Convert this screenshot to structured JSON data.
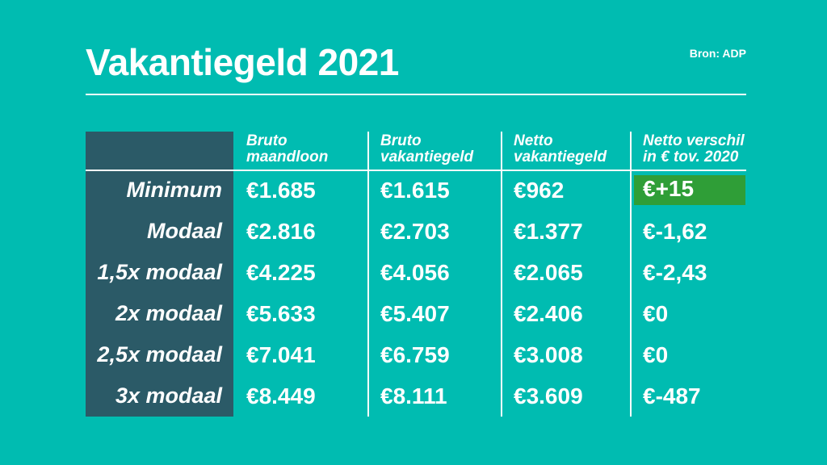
{
  "header": {
    "title": "Vakantiegeld 2021",
    "source": "Bron: ADP"
  },
  "colors": {
    "background": "#00bcb1",
    "row_header_column": "#2b5a67",
    "highlight_positive": "#2f9e37",
    "text": "#ffffff"
  },
  "table": {
    "column_headers": [
      {
        "line1": "Bruto",
        "line2": "maandloon"
      },
      {
        "line1": "Bruto",
        "line2": "vakantiegeld"
      },
      {
        "line1": "Netto",
        "line2": "vakantiegeld"
      },
      {
        "line1": "Netto verschil",
        "line2": "in € tov. 2020"
      }
    ],
    "rows": [
      {
        "label": "Minimum",
        "bruto_maandloon": "€1.685",
        "bruto_vakantiegeld": "€1.615",
        "netto_vakantiegeld": "€962",
        "netto_verschil": "€+15"
      },
      {
        "label": "Modaal",
        "bruto_maandloon": "€2.816",
        "bruto_vakantiegeld": "€2.703",
        "netto_vakantiegeld": "€1.377",
        "netto_verschil": "€-1,62"
      },
      {
        "label": "1,5x modaal",
        "bruto_maandloon": "€4.225",
        "bruto_vakantiegeld": "€4.056",
        "netto_vakantiegeld": "€2.065",
        "netto_verschil": "€-2,43"
      },
      {
        "label": "2x modaal",
        "bruto_maandloon": "€5.633",
        "bruto_vakantiegeld": "€5.407",
        "netto_vakantiegeld": "€2.406",
        "netto_verschil": "€0"
      },
      {
        "label": "2,5x modaal",
        "bruto_maandloon": "€7.041",
        "bruto_vakantiegeld": "€6.759",
        "netto_vakantiegeld": "€3.008",
        "netto_verschil": "€0"
      },
      {
        "label": "3x modaal",
        "bruto_maandloon": "€8.449",
        "bruto_vakantiegeld": "€8.111",
        "netto_vakantiegeld": "€3.609",
        "netto_verschil": "€-487"
      }
    ]
  },
  "chart_data": {
    "type": "table",
    "title": "Vakantiegeld 2021",
    "source": "Bron: ADP",
    "columns": [
      "",
      "Bruto maandloon",
      "Bruto vakantiegeld",
      "Netto vakantiegeld",
      "Netto verschil in € tov. 2020"
    ],
    "rows": [
      [
        "Minimum",
        1685,
        1615,
        962,
        15
      ],
      [
        "Modaal",
        2816,
        2703,
        1377,
        -1.62
      ],
      [
        "1,5x modaal",
        4225,
        4056,
        2065,
        -2.43
      ],
      [
        "2x modaal",
        5633,
        5407,
        2406,
        0
      ],
      [
        "2,5x modaal",
        7041,
        6759,
        3008,
        0
      ],
      [
        "3x modaal",
        8449,
        8111,
        3609,
        -487
      ]
    ],
    "units": "EUR",
    "highlighted_cell": {
      "row": "Minimum",
      "column": "Netto verschil in € tov. 2020",
      "value": "€+15",
      "color": "#2f9e37"
    }
  }
}
